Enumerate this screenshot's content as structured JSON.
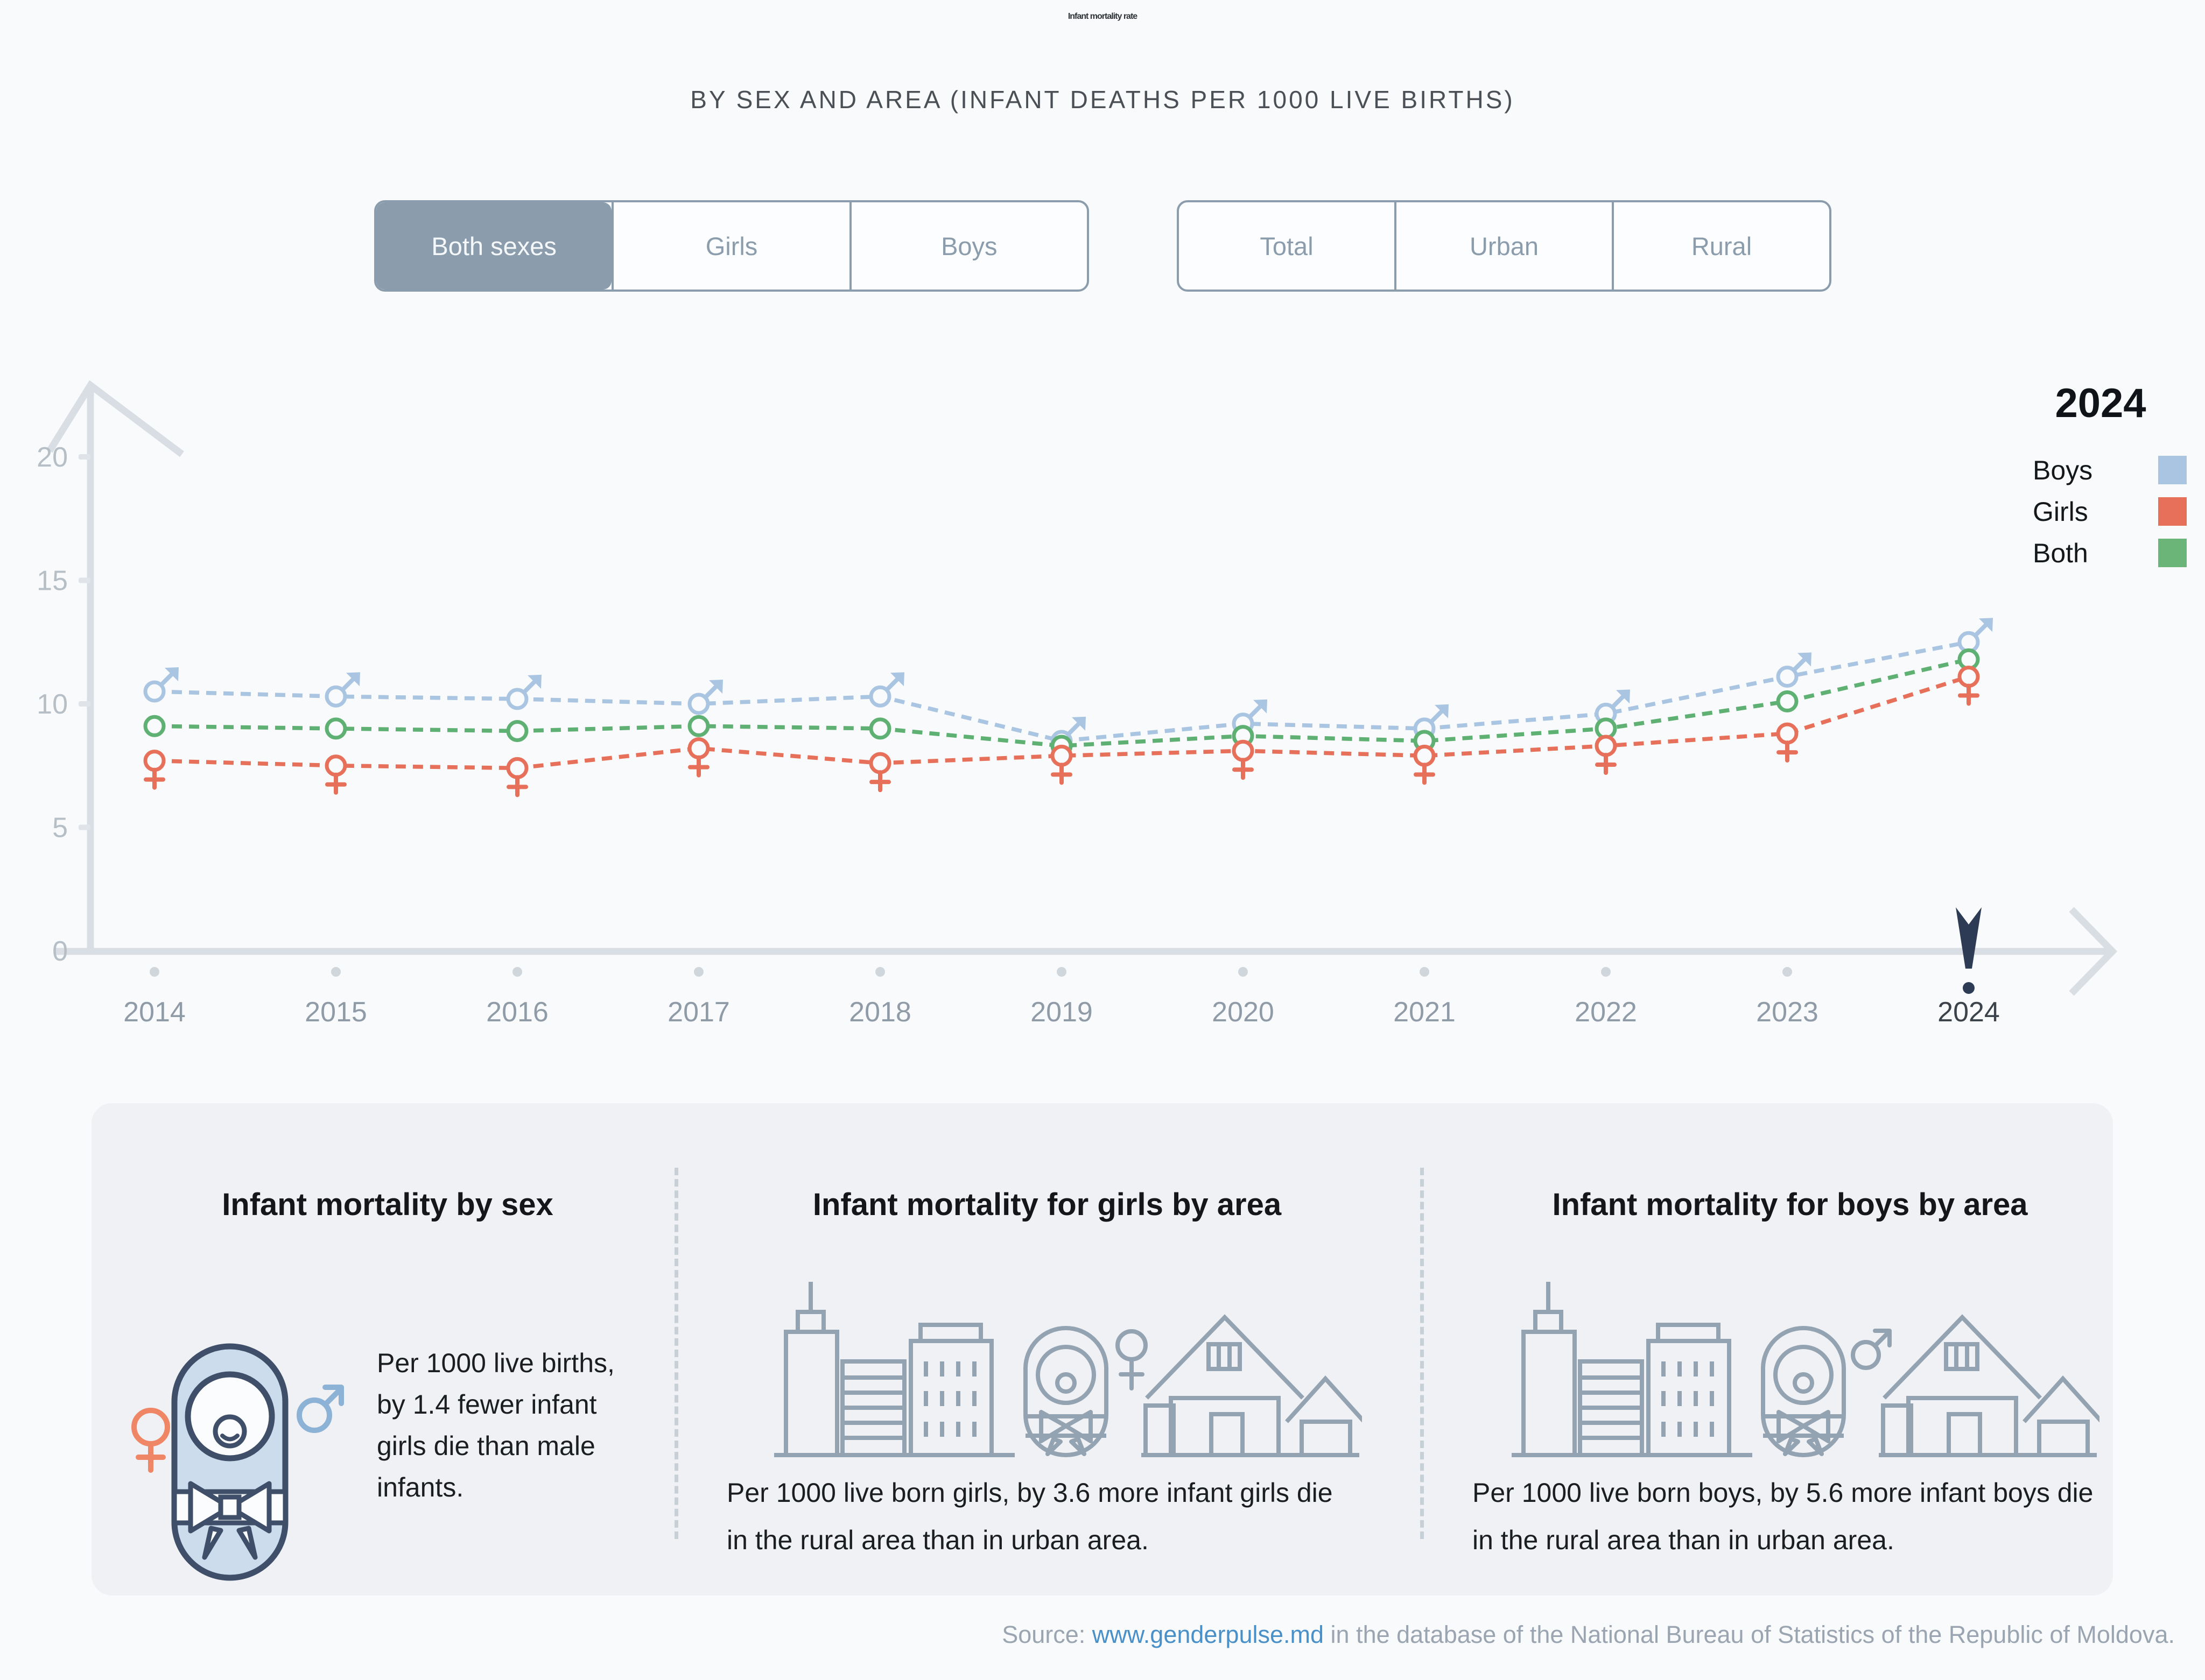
{
  "header": {
    "title": "Infant mortality rate",
    "subtitle": "BY SEX AND AREA (INFANT DEATHS PER 1000 LIVE BIRTHS)"
  },
  "controls": {
    "sex_options": [
      {
        "label": "Both sexes",
        "selected": true
      },
      {
        "label": "Girls",
        "selected": false
      },
      {
        "label": "Boys",
        "selected": false
      }
    ],
    "area_options": [
      {
        "label": "Total",
        "selected": false
      },
      {
        "label": "Urban",
        "selected": false
      },
      {
        "label": "Rural",
        "selected": false
      }
    ]
  },
  "chart_data": {
    "type": "line",
    "title": "Infant mortality rate by sex (infant deaths per 1000 live births)",
    "x": [
      2014,
      2015,
      2016,
      2017,
      2018,
      2019,
      2020,
      2021,
      2022,
      2023,
      2024
    ],
    "series": [
      {
        "name": "Boys",
        "color": "#a9c5e2",
        "symbol": "male",
        "values": [
          10.5,
          10.3,
          10.2,
          10.0,
          10.3,
          8.5,
          9.2,
          9.0,
          9.6,
          11.1,
          12.5
        ]
      },
      {
        "name": "Girls",
        "color": "#e7705a",
        "symbol": "female",
        "values": [
          7.7,
          7.5,
          7.4,
          8.2,
          7.6,
          7.9,
          8.1,
          7.9,
          8.3,
          8.8,
          11.1
        ]
      },
      {
        "name": "Both",
        "color": "#5fb073",
        "symbol": "circle",
        "values": [
          9.1,
          9.0,
          8.9,
          9.1,
          9.0,
          8.3,
          8.7,
          8.5,
          9.0,
          10.1,
          11.8
        ]
      }
    ],
    "ylim": [
      0,
      20
    ],
    "yticks": [
      0,
      5,
      10,
      15,
      20
    ],
    "grid": false,
    "line_style": "dashed",
    "legend_year": "2024",
    "legend_position": "top-right",
    "highlight_year": 2024
  },
  "legend_swatch_colors": {
    "boys": "#a9c5e2",
    "girls": "#e7705a",
    "both": "#6cb579"
  },
  "cards": [
    {
      "title": "Infant mortality by sex",
      "lines": [
        "Per 1000 live births,",
        "by 1.4 fewer infant",
        "girls die than male",
        "infants."
      ]
    },
    {
      "title": "Infant mortality for girls by area",
      "lines": [
        "Per 1000 live born girls, by 3.6 more infant girls die",
        "in the rural area than in urban area."
      ]
    },
    {
      "title": "Infant mortality for boys by area",
      "lines": [
        "Per 1000 live born boys, by 5.6 more infant boys die",
        "in the rural area than in urban area."
      ]
    }
  ],
  "source": {
    "prefix": "Source: ",
    "link": "www.genderpulse.md",
    "suffix": " in the database of the National Bureau of Statistics of the Republic of Moldova."
  },
  "ui_colors": {
    "axis": "#d9dee4",
    "tick_text": "#b6bec6",
    "year_text": "#8f9ba7",
    "year_highlight": "#3c434b",
    "year_dot": "#cfd6dc",
    "pointer_navy": "#2e3b55",
    "marker_bg": "#f9fafb",
    "button_slate": "#8b9dac",
    "icon_gray": "#93a3b1",
    "icon_orange": "#ef8666",
    "icon_blue": "#8cb2d6",
    "baby_navy": "#3f4f69",
    "baby_fill": "#cddcec",
    "link_blue": "#4a90c8"
  }
}
